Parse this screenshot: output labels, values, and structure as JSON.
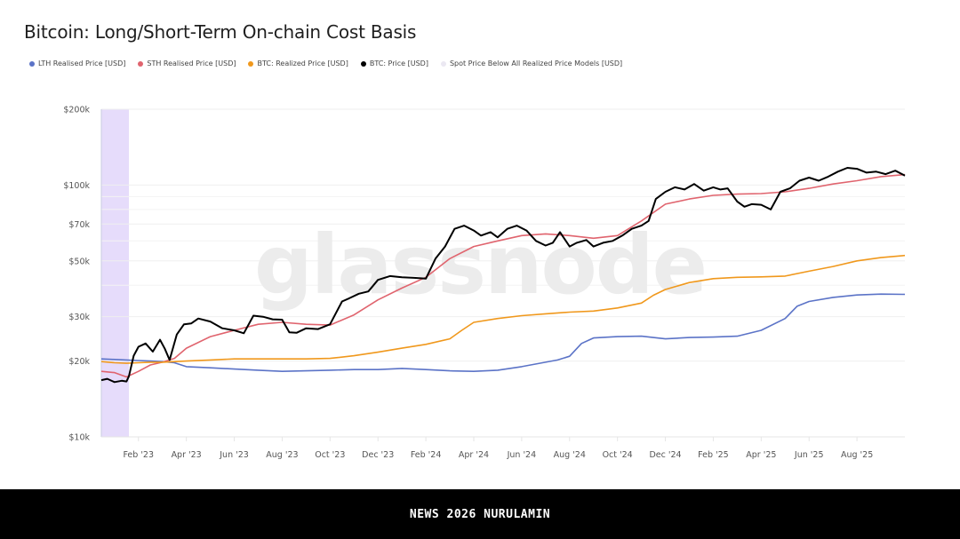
{
  "header": {
    "title": "Bitcoin: Long/Short-Term On-chain Cost Basis"
  },
  "footer": {
    "text": "NEWS 2026 NURULAMIN"
  },
  "watermark": "glassnode",
  "chart_data": {
    "type": "line",
    "title": "Bitcoin: Long/Short-Term On-chain Cost Basis",
    "xlabel": "",
    "ylabel": "",
    "y_scale": "log",
    "ylim": [
      10000,
      200000
    ],
    "grid": true,
    "legend_position": "top-left",
    "y_ticks": [
      {
        "value": 200000,
        "label": "$200k"
      },
      {
        "value": 100000,
        "label": "$100k"
      },
      {
        "value": 70000,
        "label": "$70k"
      },
      {
        "value": 50000,
        "label": "$50k"
      },
      {
        "value": 30000,
        "label": "$30k"
      },
      {
        "value": 20000,
        "label": "$20k"
      },
      {
        "value": 10000,
        "label": "$10k"
      }
    ],
    "y_minor_gridlines": [
      90000,
      80000,
      60000,
      40000
    ],
    "x_unit": "months since Feb 1 2023",
    "xlim": [
      -1.55,
      32.0
    ],
    "x_ticks": [
      {
        "value": 0,
        "label": "Feb '23"
      },
      {
        "value": 2,
        "label": "Apr '23"
      },
      {
        "value": 4,
        "label": "Jun '23"
      },
      {
        "value": 6,
        "label": "Aug '23"
      },
      {
        "value": 8,
        "label": "Oct '23"
      },
      {
        "value": 10,
        "label": "Dec '23"
      },
      {
        "value": 12,
        "label": "Feb '24"
      },
      {
        "value": 14,
        "label": "Apr '24"
      },
      {
        "value": 16,
        "label": "Jun '24"
      },
      {
        "value": 18,
        "label": "Aug '24"
      },
      {
        "value": 20,
        "label": "Oct '24"
      },
      {
        "value": 22,
        "label": "Dec '24"
      },
      {
        "value": 24,
        "label": "Feb '25"
      },
      {
        "value": 26,
        "label": "Apr '25"
      },
      {
        "value": 28,
        "label": "Jun '25"
      },
      {
        "value": 30,
        "label": "Aug '25"
      }
    ],
    "shaded_regions": [
      {
        "name": "Spot Price Below All Realized Price Models [USD]",
        "x_start": -1.55,
        "x_end": -0.4,
        "color": "#e6dcfb"
      }
    ],
    "series": [
      {
        "name": "LTH Realised Price [USD]",
        "color": "#5b73c7",
        "x": [
          -1.55,
          -1,
          -0.5,
          0,
          0.5,
          1,
          1.5,
          2,
          3,
          4,
          5,
          6,
          7,
          8,
          9,
          10,
          11,
          12,
          13,
          14,
          15,
          16,
          17,
          17.5,
          18,
          18.5,
          19,
          20,
          21,
          22,
          23,
          24,
          25,
          26,
          27,
          27.5,
          28,
          29,
          30,
          31,
          32
        ],
        "values": [
          20400,
          20300,
          20200,
          20100,
          20000,
          19900,
          19700,
          19000,
          18800,
          18600,
          18400,
          18200,
          18300,
          18400,
          18500,
          18500,
          18700,
          18500,
          18300,
          18200,
          18400,
          19000,
          19800,
          20200,
          20900,
          23500,
          24700,
          25000,
          25100,
          24500,
          24800,
          24900,
          25100,
          26500,
          29500,
          33000,
          34500,
          35800,
          36600,
          36900,
          36800
        ]
      },
      {
        "name": "STH Realised Price [USD]",
        "color": "#e0646e",
        "x": [
          -1.55,
          -1,
          -0.5,
          0,
          0.5,
          1,
          1.5,
          2,
          3,
          4,
          5,
          6,
          7,
          8,
          9,
          10,
          11,
          12,
          13,
          14,
          15,
          16,
          17,
          18,
          19,
          20,
          21,
          22,
          23,
          24,
          25,
          26,
          27,
          28,
          29,
          30,
          31,
          32
        ],
        "values": [
          18200,
          18000,
          17300,
          18200,
          19300,
          19800,
          20500,
          22500,
          25000,
          26500,
          28000,
          28500,
          28000,
          27800,
          30500,
          35000,
          39000,
          43000,
          51000,
          57000,
          60000,
          63000,
          64000,
          63000,
          61500,
          63000,
          72000,
          84000,
          88000,
          91000,
          92000,
          92500,
          94000,
          97000,
          101000,
          104000,
          108000,
          110000
        ]
      },
      {
        "name": "BTC: Realized Price [USD]",
        "color": "#f0981c",
        "x": [
          -1.55,
          -1,
          -0.5,
          0,
          0.5,
          1,
          2,
          3,
          4,
          5,
          6,
          7,
          8,
          9,
          10,
          11,
          12,
          13,
          13.5,
          14,
          15,
          16,
          17,
          18,
          19,
          20,
          21,
          21.5,
          22,
          23,
          24,
          25,
          26,
          27,
          28,
          29,
          30,
          31,
          32
        ],
        "values": [
          19900,
          19700,
          19600,
          19700,
          19800,
          19800,
          20000,
          20200,
          20400,
          20400,
          20400,
          20400,
          20500,
          21000,
          21700,
          22500,
          23300,
          24500,
          26500,
          28500,
          29500,
          30300,
          30800,
          31300,
          31600,
          32500,
          34000,
          36500,
          38500,
          41000,
          42500,
          43000,
          43200,
          43500,
          45500,
          47500,
          50000,
          51500,
          52500
        ]
      },
      {
        "name": "BTC: Price [USD]",
        "color": "#000000",
        "x": [
          -1.55,
          -1.3,
          -1,
          -0.7,
          -0.5,
          -0.4,
          -0.2,
          0,
          0.3,
          0.6,
          0.9,
          1.1,
          1.3,
          1.6,
          1.9,
          2.2,
          2.5,
          3,
          3.5,
          4,
          4.4,
          4.8,
          5.2,
          5.6,
          6,
          6.3,
          6.6,
          7,
          7.5,
          8,
          8.5,
          8.8,
          9.2,
          9.6,
          10,
          10.5,
          11,
          11.5,
          12,
          12.4,
          12.8,
          13.2,
          13.6,
          14,
          14.3,
          14.7,
          15,
          15.4,
          15.8,
          16.2,
          16.6,
          17,
          17.3,
          17.6,
          18,
          18.3,
          18.7,
          19,
          19.4,
          19.8,
          20.2,
          20.6,
          21,
          21.3,
          21.6,
          22,
          22.4,
          22.8,
          23.2,
          23.6,
          24,
          24.3,
          24.6,
          25,
          25.3,
          25.6,
          26,
          26.4,
          26.8,
          27.2,
          27.6,
          28,
          28.4,
          28.8,
          29.2,
          29.6,
          30,
          30.4,
          30.8,
          31.2,
          31.6,
          32
        ],
        "values": [
          16800,
          17000,
          16500,
          16700,
          16600,
          17400,
          21000,
          22800,
          23500,
          21800,
          24300,
          22400,
          20200,
          25500,
          28000,
          28200,
          29500,
          28700,
          27000,
          26500,
          25800,
          30300,
          30000,
          29300,
          29200,
          26000,
          25900,
          27000,
          26800,
          28000,
          34500,
          35500,
          37000,
          37800,
          42000,
          43500,
          43000,
          42800,
          42500,
          51000,
          57000,
          67000,
          69000,
          66000,
          63000,
          65000,
          62000,
          67000,
          69000,
          66000,
          60000,
          57500,
          59000,
          65000,
          57000,
          59000,
          60500,
          57000,
          59000,
          60000,
          63000,
          67000,
          69000,
          72000,
          88000,
          94000,
          98000,
          96000,
          101000,
          95000,
          98000,
          96000,
          97000,
          86000,
          82000,
          84000,
          83500,
          80000,
          94000,
          97000,
          104000,
          107000,
          104000,
          108000,
          113000,
          117000,
          116000,
          112000,
          113000,
          110500,
          114000,
          109000
        ]
      }
    ]
  }
}
